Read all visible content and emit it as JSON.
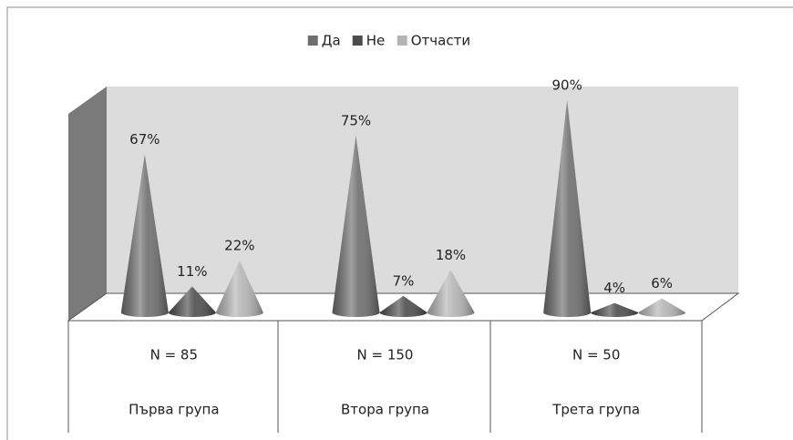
{
  "chart_data": {
    "type": "cone",
    "categories": [
      "Първа група",
      "Втора група",
      "Трета група"
    ],
    "category_counts": [
      "N = 85",
      "N = 150",
      "N = 50"
    ],
    "series": [
      {
        "name": "Да",
        "color": "#6e6e6e",
        "values": [
          67,
          75,
          90
        ],
        "value_labels": [
          "67%",
          "75%",
          "90%"
        ]
      },
      {
        "name": "Не",
        "color": "#4c4c4c",
        "values": [
          11,
          7,
          4
        ],
        "value_labels": [
          "11%",
          "7%",
          "4%"
        ]
      },
      {
        "name": "Отчасти",
        "color": "#b4b4b4",
        "values": [
          22,
          18,
          6
        ],
        "value_labels": [
          "22%",
          "18%",
          "6%"
        ]
      }
    ],
    "legend": "top"
  }
}
